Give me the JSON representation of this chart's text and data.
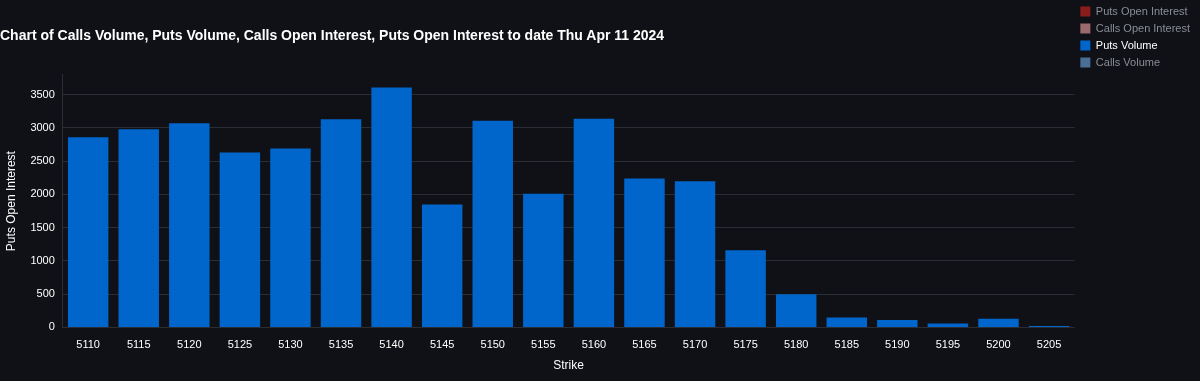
{
  "chart_data": {
    "type": "bar",
    "title": "Chart of Calls Volume, Puts Volume, Calls Open Interest, Puts Open Interest to date Thu Apr 11 2024",
    "xlabel": "Strike",
    "ylabel": "Puts Open Interest",
    "categories": [
      "5110",
      "5115",
      "5120",
      "5125",
      "5130",
      "5135",
      "5140",
      "5145",
      "5150",
      "5155",
      "5160",
      "5165",
      "5170",
      "5175",
      "5180",
      "5185",
      "5190",
      "5195",
      "5200",
      "5205"
    ],
    "series": [
      {
        "name": "Puts Open Interest",
        "color": "#8b1c1c",
        "values": [
          null,
          null,
          null,
          null,
          null,
          null,
          null,
          null,
          null,
          null,
          null,
          null,
          null,
          null,
          null,
          null,
          null,
          null,
          null,
          null
        ]
      },
      {
        "name": "Calls Open Interest",
        "color": "#9a6a6f",
        "values": [
          null,
          null,
          null,
          null,
          null,
          null,
          null,
          null,
          null,
          null,
          null,
          null,
          null,
          null,
          null,
          null,
          null,
          null,
          null,
          null
        ]
      },
      {
        "name": "Puts Volume",
        "color": "#0066cc",
        "values": [
          2860,
          2980,
          3070,
          2630,
          2690,
          3130,
          3610,
          1850,
          3110,
          2010,
          3140,
          2240,
          2200,
          1160,
          500,
          150,
          110,
          60,
          130,
          20
        ]
      },
      {
        "name": "Calls Volume",
        "color": "#4a6f95",
        "values": [
          null,
          null,
          null,
          null,
          null,
          null,
          null,
          null,
          null,
          null,
          null,
          null,
          null,
          null,
          null,
          null,
          null,
          null,
          null,
          null
        ]
      }
    ],
    "ylim": [
      0,
      3800
    ],
    "yticks": [
      0,
      500,
      1000,
      1500,
      2000,
      2500,
      3000,
      3500
    ],
    "grid": "y",
    "legend": "top right"
  }
}
